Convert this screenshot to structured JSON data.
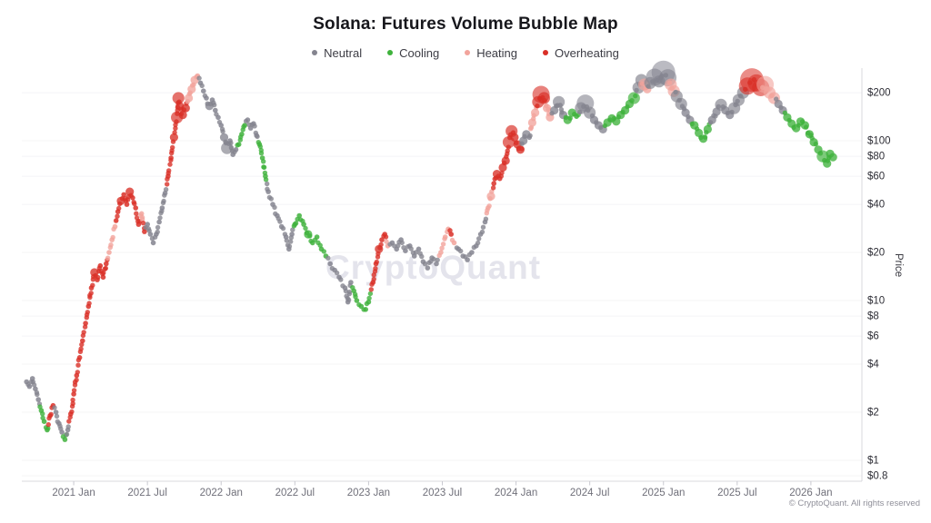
{
  "header": {
    "title": "Solana: Futures Volume Bubble Map"
  },
  "legend": [
    {
      "label": "Neutral",
      "phase": "N",
      "color": "#84848f"
    },
    {
      "label": "Cooling",
      "phase": "C",
      "color": "#3fb23c"
    },
    {
      "label": "Heating",
      "phase": "H",
      "color": "#f2a49c"
    },
    {
      "label": "Overheating",
      "phase": "O",
      "color": "#d92f27"
    }
  ],
  "watermark": "CryptoQuant",
  "footer": "© CryptoQuant. All rights reserved",
  "chart_data": {
    "type": "scatter",
    "title": "Solana: Futures Volume Bubble Map",
    "ylabel": "Price",
    "y_scale": "log",
    "grid": "horizontal-faint",
    "legend_position": "top",
    "x_domain": [
      2020.648,
      2026.346
    ],
    "y_domain": [
      0.74,
      285
    ],
    "x_ticks": [
      "2021 Jan",
      "2021 Jul",
      "2022 Jan",
      "2022 Jul",
      "2023 Jan",
      "2023 Jul",
      "2024 Jan",
      "2024 Jul",
      "2025 Jan",
      "2025 Jul",
      "2026 Jan"
    ],
    "x_tick_values": [
      2021.0,
      2021.5,
      2022.0,
      2022.5,
      2023.0,
      2023.5,
      2024.0,
      2024.5,
      2025.0,
      2025.5,
      2026.0
    ],
    "y_ticks": [
      "$200",
      "$100",
      "$80",
      "$60",
      "$40",
      "$20",
      "$10",
      "$8",
      "$6",
      "$4",
      "$2",
      "$1",
      "$0.8"
    ],
    "y_tick_values": [
      200,
      100,
      80,
      60,
      40,
      20,
      10,
      8,
      6,
      4,
      2,
      1,
      0.8
    ],
    "phases": {
      "N": "Neutral",
      "C": "Cooling",
      "H": "Heating",
      "O": "Overheating"
    },
    "colors": {
      "N": "#84848f",
      "C": "#3fb23c",
      "H": "#f2a49c",
      "O": "#d92f27"
    },
    "size_radius_px": {
      "1": 2.8,
      "2": 4.6,
      "3": 6.6,
      "4": 9.5,
      "5": 13
    },
    "points_format": [
      "year_decimal",
      "price_usd",
      "phase",
      "size"
    ],
    "points": [
      [
        2020.68,
        3.1,
        "N",
        1
      ],
      [
        2020.7,
        2.9,
        "N",
        1
      ],
      [
        2020.72,
        3.25,
        "N",
        1
      ],
      [
        2020.74,
        2.8,
        "N",
        1
      ],
      [
        2020.76,
        2.4,
        "N",
        1
      ],
      [
        2020.78,
        2.05,
        "C",
        1
      ],
      [
        2020.8,
        1.75,
        "C",
        1
      ],
      [
        2020.82,
        1.55,
        "C",
        1
      ],
      [
        2020.84,
        1.9,
        "O",
        1
      ],
      [
        2020.86,
        2.2,
        "O",
        1
      ],
      [
        2020.88,
        2.0,
        "N",
        1
      ],
      [
        2020.9,
        1.7,
        "N",
        1
      ],
      [
        2020.92,
        1.5,
        "N",
        1
      ],
      [
        2020.94,
        1.35,
        "C",
        1
      ],
      [
        2020.96,
        1.55,
        "N",
        1
      ],
      [
        2020.98,
        1.95,
        "O",
        1
      ],
      [
        2021.0,
        2.6,
        "O",
        1
      ],
      [
        2021.02,
        3.4,
        "O",
        1
      ],
      [
        2021.04,
        4.4,
        "O",
        1
      ],
      [
        2021.06,
        5.6,
        "O",
        1
      ],
      [
        2021.08,
        7.2,
        "O",
        1
      ],
      [
        2021.1,
        9.2,
        "O",
        1
      ],
      [
        2021.12,
        12,
        "O",
        1
      ],
      [
        2021.14,
        15,
        "O",
        2
      ],
      [
        2021.16,
        13.5,
        "O",
        1
      ],
      [
        2021.18,
        16.5,
        "O",
        1
      ],
      [
        2021.2,
        14,
        "O",
        1
      ],
      [
        2021.22,
        17,
        "O",
        1
      ],
      [
        2021.24,
        20,
        "H",
        1
      ],
      [
        2021.26,
        24,
        "H",
        1
      ],
      [
        2021.28,
        29,
        "H",
        1
      ],
      [
        2021.3,
        36,
        "O",
        1
      ],
      [
        2021.32,
        42,
        "O",
        2
      ],
      [
        2021.34,
        46,
        "O",
        1
      ],
      [
        2021.36,
        40,
        "O",
        1
      ],
      [
        2021.38,
        48,
        "O",
        2
      ],
      [
        2021.4,
        44,
        "O",
        1
      ],
      [
        2021.42,
        38,
        "O",
        1
      ],
      [
        2021.44,
        30,
        "O",
        1
      ],
      [
        2021.46,
        35,
        "H",
        1
      ],
      [
        2021.48,
        27,
        "O",
        1
      ],
      [
        2021.5,
        30,
        "N",
        1
      ],
      [
        2021.52,
        26,
        "N",
        1
      ],
      [
        2021.54,
        23,
        "N",
        1
      ],
      [
        2021.56,
        26,
        "N",
        1
      ],
      [
        2021.58,
        31,
        "N",
        1
      ],
      [
        2021.6,
        38,
        "N",
        1
      ],
      [
        2021.62,
        47,
        "N",
        1
      ],
      [
        2021.64,
        60,
        "O",
        1
      ],
      [
        2021.66,
        78,
        "O",
        1
      ],
      [
        2021.68,
        105,
        "O",
        2
      ],
      [
        2021.7,
        140,
        "O",
        3
      ],
      [
        2021.71,
        185,
        "O",
        3
      ],
      [
        2021.72,
        165,
        "O",
        2
      ],
      [
        2021.74,
        145,
        "O",
        2
      ],
      [
        2021.76,
        160,
        "O",
        2
      ],
      [
        2021.78,
        185,
        "H",
        2
      ],
      [
        2021.8,
        210,
        "H",
        2
      ],
      [
        2021.82,
        240,
        "H",
        2
      ],
      [
        2021.84,
        255,
        "H",
        1
      ],
      [
        2021.86,
        230,
        "N",
        1
      ],
      [
        2021.88,
        205,
        "N",
        1
      ],
      [
        2021.9,
        185,
        "N",
        1
      ],
      [
        2021.92,
        165,
        "N",
        2
      ],
      [
        2021.94,
        180,
        "N",
        1
      ],
      [
        2021.96,
        155,
        "N",
        1
      ],
      [
        2021.98,
        140,
        "N",
        1
      ],
      [
        2022.0,
        125,
        "N",
        1
      ],
      [
        2022.02,
        105,
        "N",
        2
      ],
      [
        2022.04,
        90,
        "N",
        3
      ],
      [
        2022.06,
        100,
        "N",
        1
      ],
      [
        2022.08,
        82,
        "N",
        1
      ],
      [
        2022.1,
        88,
        "N",
        1
      ],
      [
        2022.12,
        95,
        "C",
        1
      ],
      [
        2022.14,
        110,
        "C",
        1
      ],
      [
        2022.16,
        125,
        "C",
        1
      ],
      [
        2022.18,
        135,
        "N",
        1
      ],
      [
        2022.2,
        120,
        "N",
        1
      ],
      [
        2022.22,
        128,
        "N",
        1
      ],
      [
        2022.24,
        108,
        "N",
        1
      ],
      [
        2022.26,
        95,
        "C",
        1
      ],
      [
        2022.28,
        78,
        "C",
        1
      ],
      [
        2022.3,
        60,
        "C",
        1
      ],
      [
        2022.32,
        48,
        "N",
        1
      ],
      [
        2022.35,
        40,
        "N",
        1
      ],
      [
        2022.38,
        34,
        "N",
        1
      ],
      [
        2022.41,
        29,
        "N",
        1
      ],
      [
        2022.44,
        25,
        "N",
        1
      ],
      [
        2022.46,
        21,
        "N",
        1
      ],
      [
        2022.48,
        26,
        "N",
        1
      ],
      [
        2022.5,
        30,
        "C",
        1
      ],
      [
        2022.53,
        34,
        "C",
        1
      ],
      [
        2022.56,
        30,
        "C",
        1
      ],
      [
        2022.59,
        26,
        "C",
        2
      ],
      [
        2022.62,
        23,
        "C",
        1
      ],
      [
        2022.65,
        25,
        "C",
        1
      ],
      [
        2022.68,
        21,
        "C",
        1
      ],
      [
        2022.71,
        19,
        "C",
        1
      ],
      [
        2022.74,
        17,
        "N",
        1
      ],
      [
        2022.77,
        15.5,
        "N",
        1
      ],
      [
        2022.8,
        14,
        "N",
        1
      ],
      [
        2022.84,
        12,
        "N",
        1
      ],
      [
        2022.86,
        9.8,
        "N",
        1
      ],
      [
        2022.88,
        13,
        "N",
        1
      ],
      [
        2022.9,
        11.5,
        "C",
        1
      ],
      [
        2022.92,
        10,
        "C",
        1
      ],
      [
        2022.95,
        9.2,
        "C",
        1
      ],
      [
        2022.98,
        8.8,
        "C",
        1
      ],
      [
        2023.0,
        9.8,
        "C",
        1
      ],
      [
        2023.03,
        13,
        "O",
        1
      ],
      [
        2023.05,
        17,
        "O",
        1
      ],
      [
        2023.07,
        21,
        "O",
        2
      ],
      [
        2023.09,
        24,
        "O",
        1
      ],
      [
        2023.11,
        26,
        "O",
        1
      ],
      [
        2023.13,
        22,
        "H",
        1
      ],
      [
        2023.16,
        23,
        "N",
        1
      ],
      [
        2023.19,
        21,
        "N",
        1
      ],
      [
        2023.22,
        24,
        "N",
        1
      ],
      [
        2023.25,
        20.5,
        "N",
        1
      ],
      [
        2023.28,
        22,
        "N",
        1
      ],
      [
        2023.31,
        19,
        "N",
        1
      ],
      [
        2023.34,
        21,
        "N",
        1
      ],
      [
        2023.37,
        17.5,
        "N",
        1
      ],
      [
        2023.4,
        16,
        "N",
        1
      ],
      [
        2023.43,
        18.5,
        "N",
        1
      ],
      [
        2023.46,
        17,
        "N",
        1
      ],
      [
        2023.49,
        20,
        "H",
        1
      ],
      [
        2023.52,
        25,
        "H",
        1
      ],
      [
        2023.54,
        28,
        "H",
        1
      ],
      [
        2023.56,
        26,
        "O",
        1
      ],
      [
        2023.58,
        23,
        "H",
        1
      ],
      [
        2023.61,
        21,
        "N",
        1
      ],
      [
        2023.64,
        19,
        "N",
        1
      ],
      [
        2023.67,
        18,
        "N",
        1
      ],
      [
        2023.7,
        20,
        "N",
        1
      ],
      [
        2023.73,
        22,
        "N",
        1
      ],
      [
        2023.76,
        26,
        "N",
        1
      ],
      [
        2023.79,
        31,
        "N",
        1
      ],
      [
        2023.81,
        38,
        "H",
        1
      ],
      [
        2023.83,
        45,
        "H",
        2
      ],
      [
        2023.85,
        54,
        "O",
        1
      ],
      [
        2023.87,
        62,
        "O",
        2
      ],
      [
        2023.89,
        58,
        "O",
        1
      ],
      [
        2023.91,
        68,
        "O",
        2
      ],
      [
        2023.93,
        75,
        "O",
        2
      ],
      [
        2023.95,
        98,
        "O",
        3
      ],
      [
        2023.97,
        115,
        "O",
        3
      ],
      [
        2023.99,
        105,
        "O",
        2
      ],
      [
        2024.01,
        95,
        "O",
        2
      ],
      [
        2024.03,
        88,
        "O",
        2
      ],
      [
        2024.05,
        100,
        "N",
        2
      ],
      [
        2024.07,
        110,
        "N",
        2
      ],
      [
        2024.09,
        105,
        "N",
        1
      ],
      [
        2024.11,
        130,
        "H",
        2
      ],
      [
        2024.13,
        150,
        "H",
        2
      ],
      [
        2024.15,
        175,
        "O",
        3
      ],
      [
        2024.17,
        195,
        "O",
        4
      ],
      [
        2024.19,
        185,
        "O",
        3
      ],
      [
        2024.21,
        160,
        "H",
        2
      ],
      [
        2024.23,
        140,
        "H",
        2
      ],
      [
        2024.26,
        155,
        "N",
        2
      ],
      [
        2024.29,
        175,
        "N",
        3
      ],
      [
        2024.32,
        145,
        "N",
        2
      ],
      [
        2024.35,
        135,
        "C",
        2
      ],
      [
        2024.38,
        150,
        "C",
        2
      ],
      [
        2024.41,
        142,
        "C",
        1
      ],
      [
        2024.44,
        160,
        "N",
        3
      ],
      [
        2024.47,
        172,
        "N",
        4
      ],
      [
        2024.5,
        150,
        "N",
        3
      ],
      [
        2024.53,
        135,
        "N",
        2
      ],
      [
        2024.56,
        125,
        "N",
        2
      ],
      [
        2024.59,
        118,
        "N",
        2
      ],
      [
        2024.62,
        130,
        "C",
        2
      ],
      [
        2024.65,
        138,
        "C",
        2
      ],
      [
        2024.68,
        132,
        "C",
        2
      ],
      [
        2024.71,
        145,
        "C",
        2
      ],
      [
        2024.74,
        155,
        "C",
        2
      ],
      [
        2024.77,
        170,
        "C",
        2
      ],
      [
        2024.8,
        185,
        "C",
        3
      ],
      [
        2024.83,
        215,
        "N",
        3
      ],
      [
        2024.85,
        240,
        "N",
        3
      ],
      [
        2024.87,
        225,
        "H",
        3
      ],
      [
        2024.89,
        210,
        "H",
        2
      ],
      [
        2024.91,
        230,
        "N",
        3
      ],
      [
        2024.94,
        250,
        "N",
        4
      ],
      [
        2024.97,
        235,
        "N",
        3
      ],
      [
        2025.0,
        268,
        "N",
        5
      ],
      [
        2025.03,
        248,
        "N",
        4
      ],
      [
        2025.05,
        225,
        "H",
        3
      ],
      [
        2025.07,
        205,
        "H",
        3
      ],
      [
        2025.09,
        190,
        "N",
        3
      ],
      [
        2025.12,
        170,
        "N",
        3
      ],
      [
        2025.15,
        150,
        "N",
        2
      ],
      [
        2025.18,
        135,
        "N",
        2
      ],
      [
        2025.21,
        125,
        "C",
        2
      ],
      [
        2025.24,
        112,
        "C",
        2
      ],
      [
        2025.27,
        103,
        "C",
        2
      ],
      [
        2025.3,
        118,
        "C",
        2
      ],
      [
        2025.33,
        135,
        "N",
        2
      ],
      [
        2025.36,
        152,
        "N",
        2
      ],
      [
        2025.39,
        168,
        "N",
        3
      ],
      [
        2025.42,
        155,
        "N",
        2
      ],
      [
        2025.45,
        145,
        "N",
        2
      ],
      [
        2025.48,
        160,
        "N",
        3
      ],
      [
        2025.51,
        180,
        "N",
        3
      ],
      [
        2025.54,
        200,
        "N",
        3
      ],
      [
        2025.57,
        220,
        "O",
        4
      ],
      [
        2025.6,
        240,
        "O",
        5
      ],
      [
        2025.63,
        230,
        "O",
        4
      ],
      [
        2025.66,
        215,
        "O",
        4
      ],
      [
        2025.69,
        225,
        "H",
        4
      ],
      [
        2025.72,
        200,
        "H",
        3
      ],
      [
        2025.75,
        185,
        "H",
        3
      ],
      [
        2025.78,
        170,
        "N",
        2
      ],
      [
        2025.81,
        155,
        "N",
        2
      ],
      [
        2025.84,
        140,
        "C",
        2
      ],
      [
        2025.87,
        128,
        "C",
        2
      ],
      [
        2025.9,
        120,
        "C",
        2
      ],
      [
        2025.93,
        132,
        "C",
        2
      ],
      [
        2025.96,
        125,
        "C",
        2
      ],
      [
        2025.99,
        110,
        "C",
        2
      ],
      [
        2026.02,
        98,
        "C",
        2
      ],
      [
        2026.05,
        88,
        "C",
        2
      ],
      [
        2026.08,
        80,
        "C",
        3
      ],
      [
        2026.11,
        72,
        "C",
        2
      ],
      [
        2026.13,
        83,
        "C",
        2
      ],
      [
        2026.15,
        79,
        "C",
        2
      ]
    ]
  }
}
